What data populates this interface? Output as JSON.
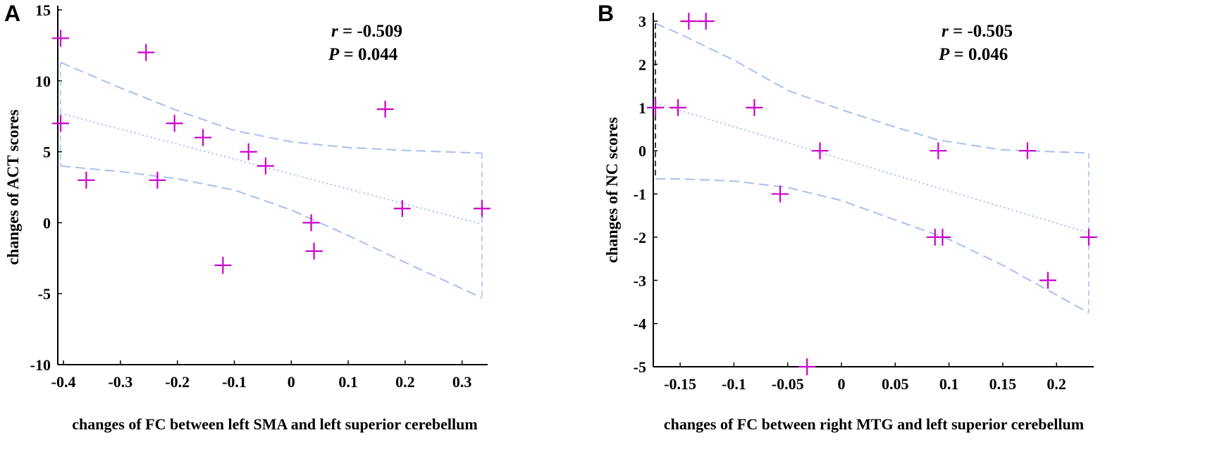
{
  "chart_data": [
    {
      "type": "scatter",
      "panel": "A",
      "xlabel": "changes of FC between left SMA and left superior cerebellum",
      "ylabel": "changes of ACT scores",
      "xlim": [
        -0.41,
        0.34
      ],
      "ylim": [
        -10,
        15
      ],
      "xticks": [
        -0.4,
        -0.3,
        -0.2,
        -0.1,
        0,
        0.1,
        0.2,
        0.3
      ],
      "xtick_labels": [
        "-0.4",
        "-0.3",
        "-0.2",
        "-0.1",
        "0",
        "0.1",
        "0.2",
        "0.3"
      ],
      "yticks": [
        -10,
        -5,
        0,
        5,
        10,
        15
      ],
      "ytick_labels": [
        "-10",
        "-5",
        "0",
        "5",
        "10",
        "15"
      ],
      "stats": {
        "r_label": "r",
        "r_value": " = -0.509",
        "p_label": "P",
        "p_value": " = 0.044"
      },
      "points": [
        {
          "x": -0.405,
          "y": 13
        },
        {
          "x": -0.405,
          "y": 7
        },
        {
          "x": -0.36,
          "y": 3
        },
        {
          "x": -0.255,
          "y": 12
        },
        {
          "x": -0.235,
          "y": 3
        },
        {
          "x": -0.205,
          "y": 7
        },
        {
          "x": -0.155,
          "y": 6
        },
        {
          "x": -0.12,
          "y": -3
        },
        {
          "x": -0.075,
          "y": 5
        },
        {
          "x": -0.045,
          "y": 4
        },
        {
          "x": 0.035,
          "y": 0
        },
        {
          "x": 0.04,
          "y": -2
        },
        {
          "x": 0.165,
          "y": 8
        },
        {
          "x": 0.195,
          "y": 1
        },
        {
          "x": 0.335,
          "y": 1
        }
      ],
      "fit_line": [
        [
          -0.405,
          7.7
        ],
        [
          0.335,
          -0.1
        ]
      ],
      "ci_upper": [
        [
          -0.405,
          11.3
        ],
        [
          -0.3,
          9.5
        ],
        [
          -0.2,
          7.9
        ],
        [
          -0.1,
          6.5
        ],
        [
          0,
          5.7
        ],
        [
          0.1,
          5.3
        ],
        [
          0.2,
          5.1
        ],
        [
          0.335,
          4.9
        ]
      ],
      "ci_lower": [
        [
          -0.405,
          4.0
        ],
        [
          -0.3,
          3.6
        ],
        [
          -0.2,
          3.1
        ],
        [
          -0.1,
          2.3
        ],
        [
          0,
          0.9
        ],
        [
          0.1,
          -0.9
        ],
        [
          0.2,
          -2.8
        ],
        [
          0.335,
          -5.3
        ]
      ],
      "point_color": "#cc00cc",
      "ci_color": "#a8bff0",
      "fit_color": "#a8bff0"
    },
    {
      "type": "scatter",
      "panel": "B",
      "xlabel": "changes of FC between right MTG and left superior cerebellum",
      "ylabel": "changes of NC scores",
      "xlim": [
        -0.175,
        0.232
      ],
      "ylim": [
        -5,
        3.1
      ],
      "xticks": [
        -0.15,
        -0.1,
        -0.05,
        0,
        0.05,
        0.1,
        0.15,
        0.2
      ],
      "xtick_labels": [
        "-0.15",
        "-0.1",
        "-0.05",
        "0",
        "0.05",
        "0.1",
        "0.15",
        "0.2"
      ],
      "yticks": [
        -5,
        -4,
        -3,
        -2,
        -1,
        0,
        1,
        2,
        3
      ],
      "ytick_labels": [
        "-5",
        "-4",
        "-3",
        "-2",
        "-1",
        "0",
        "1",
        "2",
        "3"
      ],
      "stats": {
        "r_label": "r",
        "r_value": " = -0.505",
        "p_label": "P",
        "p_value": " = 0.046"
      },
      "points": [
        {
          "x": -0.173,
          "y": 1
        },
        {
          "x": -0.152,
          "y": 1
        },
        {
          "x": -0.142,
          "y": 3
        },
        {
          "x": -0.126,
          "y": 3
        },
        {
          "x": -0.081,
          "y": 1
        },
        {
          "x": -0.057,
          "y": -1
        },
        {
          "x": -0.032,
          "y": -5
        },
        {
          "x": -0.02,
          "y": 0
        },
        {
          "x": 0.087,
          "y": -2
        },
        {
          "x": 0.09,
          "y": 0
        },
        {
          "x": 0.094,
          "y": -2
        },
        {
          "x": 0.173,
          "y": 0
        },
        {
          "x": 0.192,
          "y": -3
        },
        {
          "x": 0.23,
          "y": -2
        }
      ],
      "fit_line": [
        [
          -0.173,
          1.1
        ],
        [
          0.23,
          -1.9
        ]
      ],
      "ci_upper": [
        [
          -0.173,
          2.95
        ],
        [
          -0.15,
          2.7
        ],
        [
          -0.1,
          2.1
        ],
        [
          -0.05,
          1.4
        ],
        [
          0,
          0.95
        ],
        [
          0.05,
          0.55
        ],
        [
          0.09,
          0.25
        ],
        [
          0.15,
          0.02
        ],
        [
          0.23,
          -0.05
        ]
      ],
      "ci_lower": [
        [
          -0.173,
          -0.65
        ],
        [
          -0.15,
          -0.65
        ],
        [
          -0.1,
          -0.7
        ],
        [
          -0.05,
          -0.85
        ],
        [
          0,
          -1.15
        ],
        [
          0.05,
          -1.6
        ],
        [
          0.1,
          -2.05
        ],
        [
          0.15,
          -2.65
        ],
        [
          0.23,
          -3.75
        ]
      ],
      "point_color": "#cc00cc",
      "ci_color": "#a8bff0",
      "fit_color": "#a8bff0"
    }
  ]
}
